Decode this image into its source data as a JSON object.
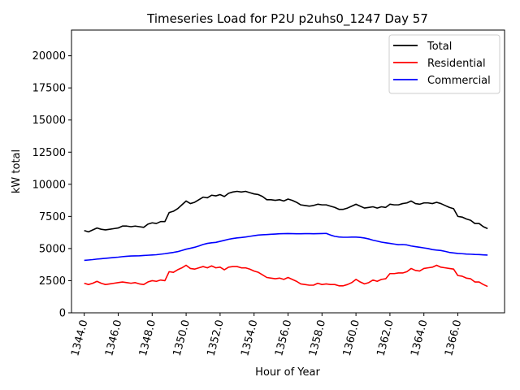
{
  "chart_data": {
    "type": "line",
    "title": "Timeseries Load for P2U p2uhs0_1247  Day 57",
    "xlabel": "Hour of Year",
    "ylabel": "kW total",
    "xlim": [
      1343.25,
      1368.75
    ],
    "ylim": [
      0,
      22000
    ],
    "xticks": [
      1344,
      1346,
      1348,
      1350,
      1352,
      1354,
      1356,
      1358,
      1360,
      1362,
      1364,
      1366
    ],
    "xtick_labels": [
      "1344.0",
      "1346.0",
      "1348.0",
      "1350.0",
      "1352.0",
      "1354.0",
      "1356.0",
      "1358.0",
      "1360.0",
      "1362.0",
      "1364.0",
      "1366.0"
    ],
    "yticks": [
      0,
      2500,
      5000,
      7500,
      10000,
      12500,
      15000,
      17500,
      20000
    ],
    "ytick_labels": [
      "0",
      "2500",
      "5000",
      "7500",
      "10000",
      "12500",
      "15000",
      "17500",
      "20000"
    ],
    "legend_position": "top-right",
    "x": [
      1344.0,
      1344.25,
      1344.5,
      1344.75,
      1345.0,
      1345.25,
      1345.5,
      1345.75,
      1346.0,
      1346.25,
      1346.5,
      1346.75,
      1347.0,
      1347.25,
      1347.5,
      1347.75,
      1348.0,
      1348.25,
      1348.5,
      1348.75,
      1349.0,
      1349.25,
      1349.5,
      1349.75,
      1350.0,
      1350.25,
      1350.5,
      1350.75,
      1351.0,
      1351.25,
      1351.5,
      1351.75,
      1352.0,
      1352.25,
      1352.5,
      1352.75,
      1353.0,
      1353.25,
      1353.5,
      1353.75,
      1354.0,
      1354.25,
      1354.5,
      1354.75,
      1355.0,
      1355.25,
      1355.5,
      1355.75,
      1356.0,
      1356.25,
      1356.5,
      1356.75,
      1357.0,
      1357.25,
      1357.5,
      1357.75,
      1358.0,
      1358.25,
      1358.5,
      1358.75,
      1359.0,
      1359.25,
      1359.5,
      1359.75,
      1360.0,
      1360.25,
      1360.5,
      1360.75,
      1361.0,
      1361.25,
      1361.5,
      1361.75,
      1362.0,
      1362.25,
      1362.5,
      1362.75,
      1363.0,
      1363.25,
      1363.5,
      1363.75,
      1364.0,
      1364.25,
      1364.5,
      1364.75,
      1365.0,
      1365.25,
      1365.5,
      1365.75,
      1366.0,
      1366.25,
      1366.5,
      1366.75,
      1367.0,
      1367.25,
      1367.5,
      1367.75
    ],
    "series": [
      {
        "name": "Total",
        "color": "#000000",
        "values": [
          6400,
          6300,
          6450,
          6600,
          6500,
          6450,
          6500,
          6550,
          6600,
          6750,
          6750,
          6700,
          6750,
          6700,
          6650,
          6900,
          7000,
          6950,
          7100,
          7100,
          7800,
          7900,
          8100,
          8400,
          8700,
          8500,
          8600,
          8800,
          9000,
          8950,
          9150,
          9100,
          9200,
          9050,
          9300,
          9400,
          9450,
          9400,
          9450,
          9350,
          9250,
          9200,
          9050,
          8800,
          8800,
          8750,
          8800,
          8700,
          8850,
          8750,
          8600,
          8400,
          8350,
          8300,
          8350,
          8450,
          8400,
          8400,
          8300,
          8200,
          8050,
          8050,
          8150,
          8300,
          8450,
          8300,
          8150,
          8200,
          8250,
          8150,
          8250,
          8200,
          8450,
          8400,
          8400,
          8500,
          8550,
          8700,
          8500,
          8450,
          8550,
          8550,
          8500,
          8600,
          8500,
          8350,
          8200,
          8100,
          7500,
          7450,
          7300,
          7200,
          6950,
          6950,
          6700,
          6550
        ]
      },
      {
        "name": "Residential",
        "color": "#ff0000",
        "values": [
          2300,
          2200,
          2300,
          2450,
          2300,
          2200,
          2250,
          2300,
          2350,
          2400,
          2350,
          2300,
          2350,
          2250,
          2200,
          2400,
          2500,
          2450,
          2550,
          2500,
          3200,
          3150,
          3350,
          3500,
          3700,
          3450,
          3400,
          3500,
          3600,
          3500,
          3650,
          3500,
          3550,
          3350,
          3550,
          3600,
          3600,
          3500,
          3500,
          3400,
          3250,
          3150,
          2950,
          2750,
          2700,
          2650,
          2700,
          2600,
          2750,
          2600,
          2450,
          2250,
          2200,
          2150,
          2150,
          2300,
          2200,
          2250,
          2200,
          2200,
          2100,
          2100,
          2200,
          2350,
          2600,
          2400,
          2250,
          2350,
          2550,
          2450,
          2600,
          2650,
          3050,
          3050,
          3100,
          3100,
          3200,
          3450,
          3300,
          3250,
          3450,
          3500,
          3550,
          3700,
          3550,
          3500,
          3450,
          3400,
          2900,
          2850,
          2700,
          2650,
          2400,
          2400,
          2200,
          2050
        ]
      },
      {
        "name": "Commercial",
        "color": "#0000ff",
        "values": [
          4080,
          4110,
          4140,
          4180,
          4210,
          4240,
          4270,
          4300,
          4330,
          4370,
          4400,
          4420,
          4430,
          4440,
          4460,
          4480,
          4500,
          4520,
          4560,
          4600,
          4650,
          4700,
          4760,
          4850,
          4950,
          5020,
          5100,
          5200,
          5320,
          5400,
          5450,
          5480,
          5560,
          5640,
          5720,
          5780,
          5830,
          5860,
          5900,
          5950,
          6000,
          6050,
          6070,
          6090,
          6110,
          6130,
          6150,
          6160,
          6170,
          6160,
          6150,
          6150,
          6160,
          6160,
          6150,
          6160,
          6170,
          6180,
          6050,
          5950,
          5900,
          5880,
          5880,
          5890,
          5890,
          5870,
          5820,
          5750,
          5650,
          5580,
          5500,
          5450,
          5400,
          5350,
          5300,
          5310,
          5280,
          5200,
          5150,
          5100,
          5050,
          5000,
          4920,
          4880,
          4850,
          4780,
          4700,
          4660,
          4620,
          4600,
          4570,
          4560,
          4540,
          4530,
          4510,
          4490
        ]
      }
    ]
  }
}
